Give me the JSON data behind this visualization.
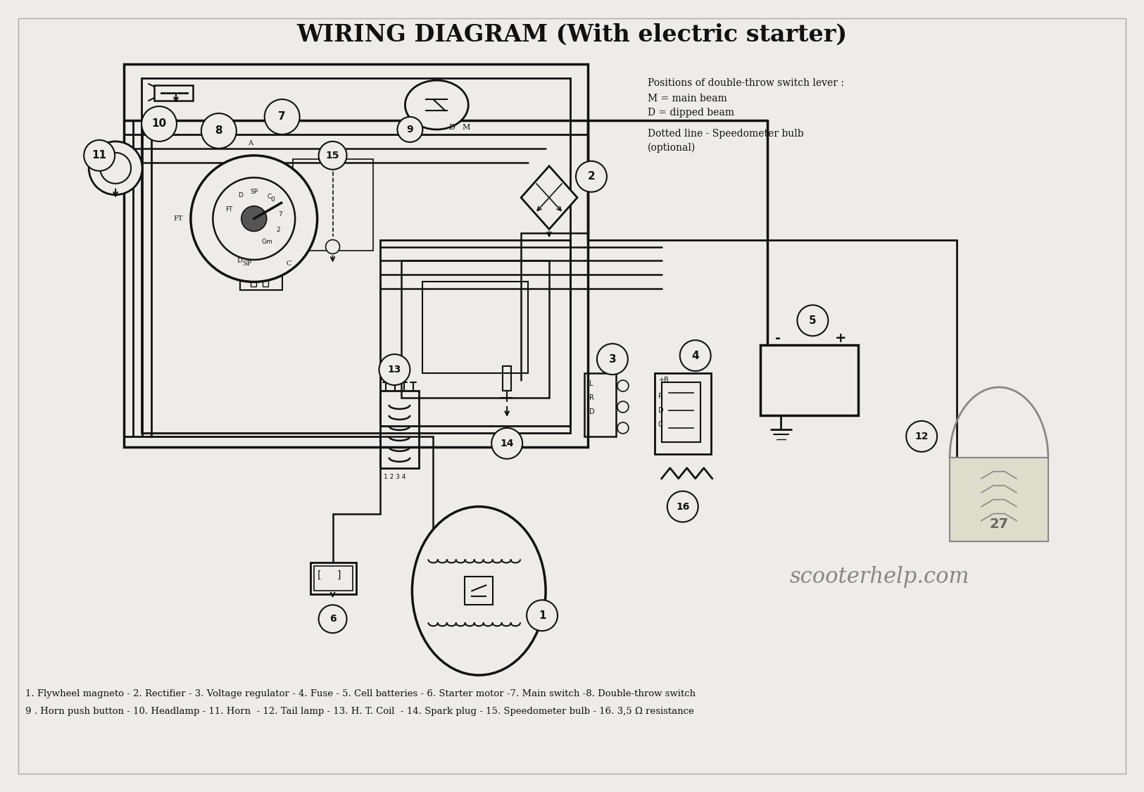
{
  "title": "WIRING DIAGRAM (With electric starter)",
  "background_color": "#eeece8",
  "title_fontsize": 24,
  "legend_text_line1": "1. Flywheel magneto - 2. Rectifier - 3. Voltage regulator - 4. Fuse - 5. Cell batteries - 6. Starter motor -7. Main switch -8. Double-throw switch",
  "legend_text_line2": "9 . Horn push button - 10. Headlamp - 11. Horn  - 12. Tail lamp - 13. H. T. Coil  - 14. Spark plug - 15. Speedometer bulb - 16. 3,5 Ω resistance",
  "watermark": "scooterhelp.com",
  "switch_legend_title": "Positions of double-throw switch lever :",
  "switch_legend_m": "M = main beam",
  "switch_legend_d": "D = dipped beam",
  "dotted_line_text": "Dotted line - Speedometer bulb",
  "dotted_line_sub": "(optional)",
  "page_number": "27",
  "line_color": "#111111"
}
